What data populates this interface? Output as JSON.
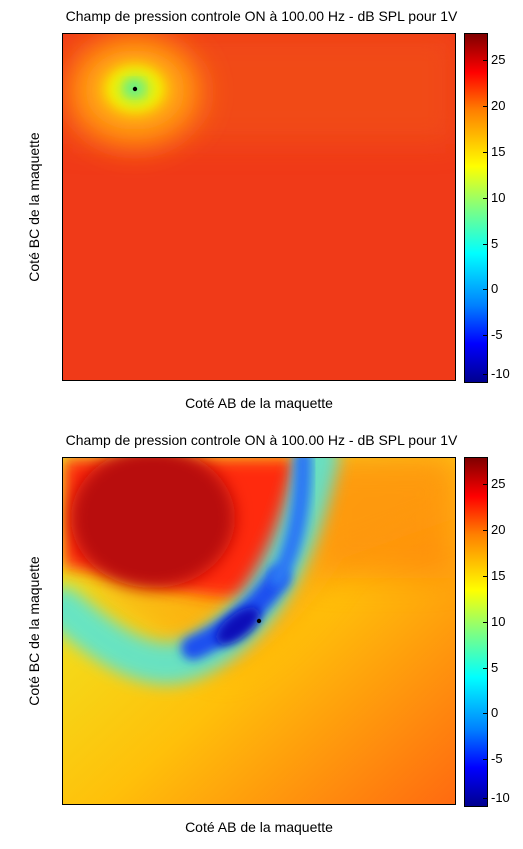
{
  "chart_data": [
    {
      "type": "heatmap",
      "title": "Champ de pression controle ON à 100.00 Hz - dB SPL pour 1V",
      "xlabel": "Coté AB de la maquette",
      "ylabel": "Coté BC de la maquette",
      "colorbar": {
        "min": -10,
        "max": 28,
        "ticks": [
          -10,
          -5,
          0,
          5,
          10,
          15,
          20,
          25
        ]
      },
      "colormap": "jet",
      "grid": false,
      "x_ticks": "none",
      "y_ticks": "none"
    },
    {
      "type": "heatmap",
      "title": "Champ de pression controle ON à 100.00 Hz - dB SPL pour 1V",
      "xlabel": "Coté AB de la maquette",
      "ylabel": "Coté BC de la maquette",
      "colorbar": {
        "min": -10,
        "max": 28,
        "ticks": [
          -10,
          -5,
          0,
          5,
          10,
          15,
          20,
          25
        ]
      },
      "colormap": "jet",
      "grid": false,
      "x_ticks": "none",
      "y_ticks": "none"
    }
  ]
}
